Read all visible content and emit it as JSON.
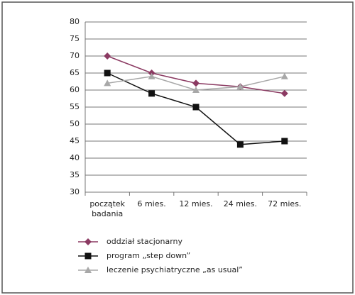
{
  "chart_data": {
    "type": "line",
    "categories": [
      "początek badania",
      "6 mies.",
      "12 mies.",
      "24 mies.",
      "72 mies."
    ],
    "series": [
      {
        "name": "oddział stacjonarny",
        "color": "#8b3a62",
        "marker": "diamond",
        "values": [
          70,
          65,
          62,
          61,
          59
        ]
      },
      {
        "name": "program „step down”",
        "color": "#111111",
        "marker": "square",
        "values": [
          65,
          59,
          55,
          44,
          45
        ]
      },
      {
        "name": "leczenie psychiatryczne „as usual”",
        "color": "#a8a8a8",
        "marker": "triangle",
        "values": [
          62,
          64,
          60,
          61,
          64
        ]
      }
    ],
    "ylim": [
      30,
      80
    ],
    "yticks": [
      30,
      35,
      40,
      45,
      50,
      55,
      60,
      65,
      70,
      75,
      80
    ],
    "grid": true
  }
}
